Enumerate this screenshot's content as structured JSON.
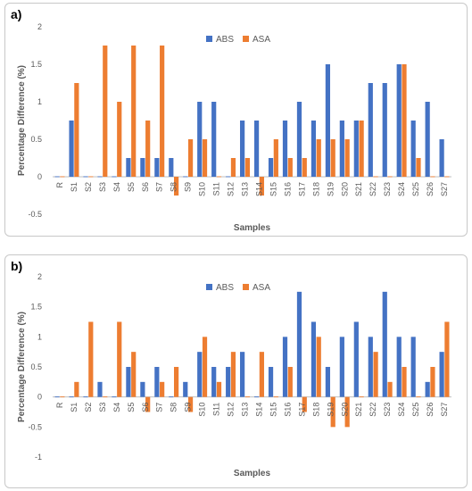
{
  "colors": {
    "abs": "#4472C4",
    "asa": "#ED7D31",
    "axis": "#bfbfbf",
    "text": "#595959"
  },
  "chart_data": [
    {
      "panel_label": "a)",
      "type": "bar",
      "xlabel": "Samples",
      "ylabel": "Percentage Difference (%)",
      "ylim": [
        -0.5,
        2
      ],
      "yticks": [
        "-0.5",
        "0",
        "0.5",
        "1",
        "1.5",
        "2"
      ],
      "legend_position": "top-center",
      "categories": [
        "R",
        "S1",
        "S2",
        "S3",
        "S4",
        "S5",
        "S6",
        "S7",
        "S8",
        "S9",
        "S10",
        "S11",
        "S12",
        "S13",
        "S14",
        "S15",
        "S16",
        "S17",
        "S18",
        "S19",
        "S20",
        "S21",
        "S22",
        "S23",
        "S24",
        "S25",
        "S26",
        "S27"
      ],
      "series": [
        {
          "name": "ABS",
          "values": [
            0,
            0.75,
            0,
            0,
            0,
            0.25,
            0.25,
            0.25,
            0.25,
            0,
            1,
            1,
            0,
            0.75,
            0.75,
            0.25,
            0.75,
            1,
            0.75,
            1.5,
            0.75,
            0.75,
            1.25,
            1.25,
            1.5,
            0.75,
            1,
            0.5
          ]
        },
        {
          "name": "ASA",
          "values": [
            0,
            1.25,
            0,
            1.75,
            1,
            1.75,
            0.75,
            1.75,
            -0.25,
            0.5,
            0.5,
            0,
            0.25,
            0.25,
            -0.25,
            0.5,
            0.25,
            0.25,
            0.5,
            0.5,
            0.5,
            0.75,
            0,
            0,
            1.5,
            0.25,
            0,
            0
          ]
        }
      ]
    },
    {
      "panel_label": "b)",
      "type": "bar",
      "xlabel": "Samples",
      "ylabel": "Percentage Difference (%)",
      "ylim": [
        -1,
        2
      ],
      "yticks": [
        "-1",
        "-0.5",
        "0",
        "0.5",
        "1",
        "1.5",
        "2"
      ],
      "legend_position": "top-center",
      "categories": [
        "R",
        "S1",
        "S2",
        "S3",
        "S4",
        "S5",
        "S6",
        "S7",
        "S8",
        "S9",
        "S10",
        "S11",
        "S12",
        "S13",
        "S14",
        "S15",
        "S16",
        "S17",
        "S18",
        "S19",
        "S20",
        "S21",
        "S22",
        "S23",
        "S24",
        "S25",
        "S26",
        "S27"
      ],
      "series": [
        {
          "name": "ABS",
          "values": [
            0,
            0,
            0,
            0.25,
            0,
            0.5,
            0.25,
            0.5,
            0,
            0.25,
            0.75,
            0.5,
            0.5,
            0.75,
            0,
            0.5,
            1,
            1.75,
            1.25,
            0.5,
            1,
            1.25,
            1,
            1.75,
            1,
            1,
            0.25,
            0.75
          ]
        },
        {
          "name": "ASA",
          "values": [
            0,
            0.25,
            1.25,
            0,
            1.25,
            0.75,
            -0.25,
            0.25,
            0.5,
            -0.25,
            1,
            0.25,
            0.75,
            0,
            0.75,
            0,
            0.5,
            -0.25,
            1,
            -0.5,
            -0.5,
            0,
            0.75,
            0.25,
            0.5,
            0,
            0.5,
            1.25
          ]
        }
      ]
    }
  ]
}
